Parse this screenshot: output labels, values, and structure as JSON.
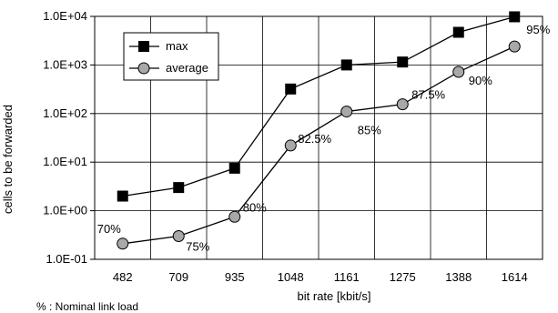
{
  "chart_data": {
    "type": "line",
    "title": "",
    "xlabel": "bit rate [kbit/s]",
    "ylabel": "cells to be forwarded",
    "categories": [
      "482",
      "709",
      "935",
      "1048",
      "1161",
      "1275",
      "1388",
      "1614"
    ],
    "y_scale": "log",
    "ylim": [
      0.1,
      10000
    ],
    "y_ticks": [
      "1.0E-01",
      "1.0E+00",
      "1.0E+01",
      "1.0E+02",
      "1.0E+03",
      "1.0E+04"
    ],
    "grid": true,
    "legend_position": "top-left",
    "series": [
      {
        "name": "max",
        "marker": "square",
        "color": "#000000",
        "values": [
          2,
          3,
          7.5,
          320,
          1000,
          1150,
          4700,
          9800
        ]
      },
      {
        "name": "average",
        "marker": "circle",
        "color": "#a8a8a8",
        "values": [
          0.21,
          0.3,
          0.75,
          22,
          110,
          155,
          720,
          2400
        ]
      }
    ],
    "annotations": [
      "70%",
      "75%",
      "80%",
      "82.5%",
      "85%",
      "87.5%",
      "90%",
      "95%"
    ],
    "note": "% : Nominal link load"
  }
}
